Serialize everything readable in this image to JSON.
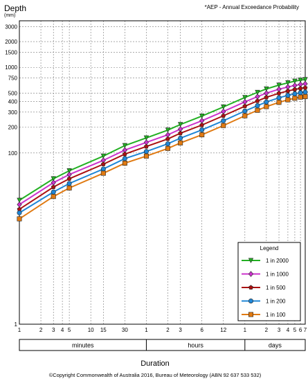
{
  "chart_data": {
    "type": "line",
    "ylabel": "Depth",
    "yunit": "(mm)",
    "note": "*AEP - Annual Exceedance Probability",
    "xlabel": "Duration",
    "copyright": "©Copyright Commonwealth of Australia 2016, Bureau of Meteorology (ABN 92 637 533 532)",
    "xscale": "log",
    "yscale": "log",
    "xlim_minutes": [
      1,
      10080
    ],
    "ylim": [
      1,
      3500
    ],
    "grid": true,
    "legend_position": "bottom-right",
    "legend_title": "Legend",
    "y_ticks": [
      "1",
      "100",
      "200",
      "300",
      "400",
      "500",
      "750",
      "1000",
      "1500",
      "2000",
      "3000"
    ],
    "x_ticks": [
      "1",
      "2",
      "3",
      "4",
      "5",
      "10",
      "15",
      "30",
      "1",
      "2",
      "3",
      "6",
      "12",
      "1",
      "2",
      "3",
      "4",
      "5",
      "6",
      "7"
    ],
    "duration_groups": [
      "minutes",
      "hours",
      "days"
    ],
    "x_minutes": [
      1,
      3,
      5,
      15,
      30,
      60,
      120,
      180,
      360,
      720,
      1440,
      2160,
      2880,
      4320,
      5760,
      7200,
      8640,
      10080
    ],
    "series": [
      {
        "name": "1 in 2000",
        "color": "#22b022",
        "marker": "triangle-down",
        "values": [
          28,
          50,
          62,
          92,
          122,
          150,
          185,
          215,
          270,
          345,
          445,
          510,
          560,
          620,
          660,
          690,
          710,
          720
        ]
      },
      {
        "name": "1 in 1000",
        "color": "#cc33cc",
        "marker": "diamond",
        "values": [
          25,
          45,
          56,
          82,
          108,
          133,
          163,
          190,
          238,
          305,
          395,
          455,
          500,
          555,
          590,
          615,
          632,
          642
        ]
      },
      {
        "name": "1 in 500",
        "color": "#aa1111",
        "marker": "pentagon",
        "values": [
          22,
          40,
          50,
          74,
          97,
          119,
          146,
          170,
          212,
          272,
          352,
          405,
          447,
          498,
          530,
          552,
          568,
          577
        ]
      },
      {
        "name": "1 in 200",
        "color": "#1f86d6",
        "marker": "circle",
        "values": [
          20,
          35,
          44,
          65,
          86,
          104,
          128,
          149,
          186,
          238,
          309,
          357,
          394,
          441,
          471,
          491,
          505,
          513
        ]
      },
      {
        "name": "1 in 100",
        "color": "#e07a12",
        "marker": "square",
        "values": [
          17,
          31,
          39,
          58,
          76,
          92,
          113,
          131,
          163,
          209,
          272,
          315,
          348,
          390,
          418,
          436,
          449,
          456
        ]
      }
    ]
  }
}
